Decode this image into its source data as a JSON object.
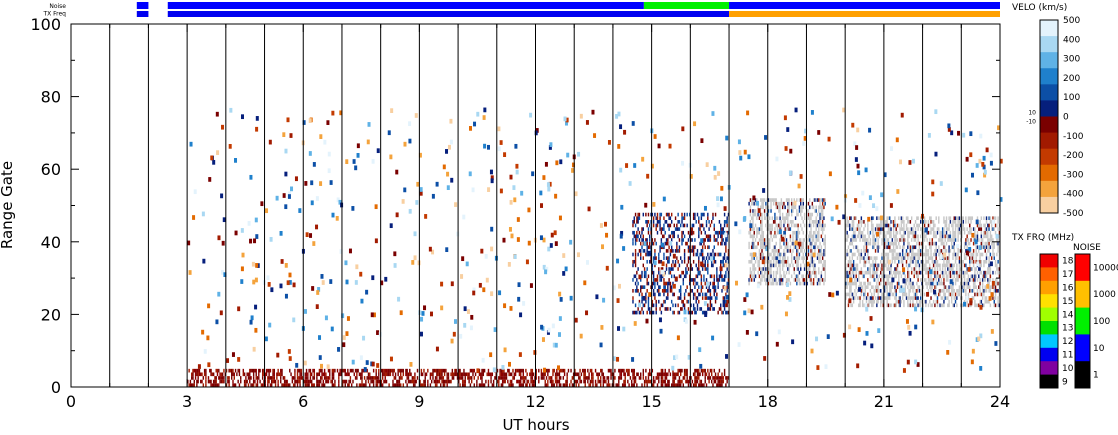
{
  "chart_data": {
    "type": "heatmap",
    "xlabel": "UT hours",
    "ylabel": "Range Gate",
    "xlim": [
      0,
      24
    ],
    "ylim": [
      0,
      100
    ],
    "x_ticks": [
      0,
      3,
      6,
      9,
      12,
      15,
      18,
      21,
      24
    ],
    "y_ticks": [
      0,
      20,
      40,
      60,
      80,
      100
    ],
    "scan_boundaries_hours": [
      1,
      2,
      3,
      4,
      5,
      6,
      7,
      8,
      9,
      10,
      11,
      12,
      13,
      14,
      15,
      16,
      17,
      18,
      19,
      20,
      21,
      22,
      23
    ],
    "status_bars": {
      "noise_label": "Noise",
      "txfreq_label": "TX Freq",
      "noise_segments": [
        {
          "start": 1.7,
          "end": 2.0,
          "level": "10"
        },
        {
          "start": 2.5,
          "end": 14.8,
          "level": "10"
        },
        {
          "start": 14.8,
          "end": 17.0,
          "level": "100"
        },
        {
          "start": 17.0,
          "end": 24.0,
          "level": "10"
        }
      ],
      "txfreq_segments": [
        {
          "start": 1.7,
          "end": 2.0,
          "mhz": 11
        },
        {
          "start": 2.5,
          "end": 17.0,
          "mhz": 11
        },
        {
          "start": 17.0,
          "end": 24.0,
          "mhz": 16
        }
      ]
    },
    "scatter_regions": [
      {
        "x": [
          3,
          17
        ],
        "gates": [
          0,
          5
        ],
        "velocity": "negative",
        "density": "high"
      },
      {
        "x": [
          14.5,
          17
        ],
        "gates": [
          20,
          48
        ],
        "velocity": "mixed",
        "density": "medium"
      },
      {
        "x": [
          17.5,
          19.5
        ],
        "gates": [
          28,
          52
        ],
        "velocity": "ground",
        "density": "high"
      },
      {
        "x": [
          20,
          24
        ],
        "gates": [
          22,
          47
        ],
        "velocity": "ground",
        "density": "high"
      }
    ],
    "velocity_colorbar": {
      "label": "VELO (km/s)",
      "ticks": [
        "500",
        "400",
        "300",
        "200",
        "100",
        "0",
        "-100",
        "-200",
        "-300",
        "-400",
        "-500"
      ],
      "side_labels": [
        "10",
        "-10"
      ],
      "colors": [
        "#e4f3fc",
        "#a9d8f2",
        "#5fb2e6",
        "#1f80cc",
        "#0c4fa6",
        "#061f7c",
        "#7a0000",
        "#a11a00",
        "#c33a00",
        "#e36a00",
        "#f4a33c",
        "#f8cfa0"
      ],
      "ground_color": "#c8c8c8"
    },
    "txfreq_colorbar": {
      "label": "TX FRQ (MHz)",
      "ticks": [
        "18",
        "17",
        "16",
        "15",
        "14",
        "13",
        "12",
        "11",
        "10",
        "9"
      ],
      "colors": [
        "#f00000",
        "#ff6000",
        "#ffa000",
        "#ffe000",
        "#a0ff00",
        "#00e000",
        "#00c8ff",
        "#0000f0",
        "#8000a0",
        "#000000"
      ]
    },
    "noise_colorbar": {
      "label": "NOISE",
      "ticks": [
        "10000",
        "1000",
        "100",
        "10",
        "1"
      ],
      "colors": [
        "#ff0000",
        "#ffc000",
        "#00f000",
        "#0000ff",
        "#000000"
      ]
    }
  }
}
